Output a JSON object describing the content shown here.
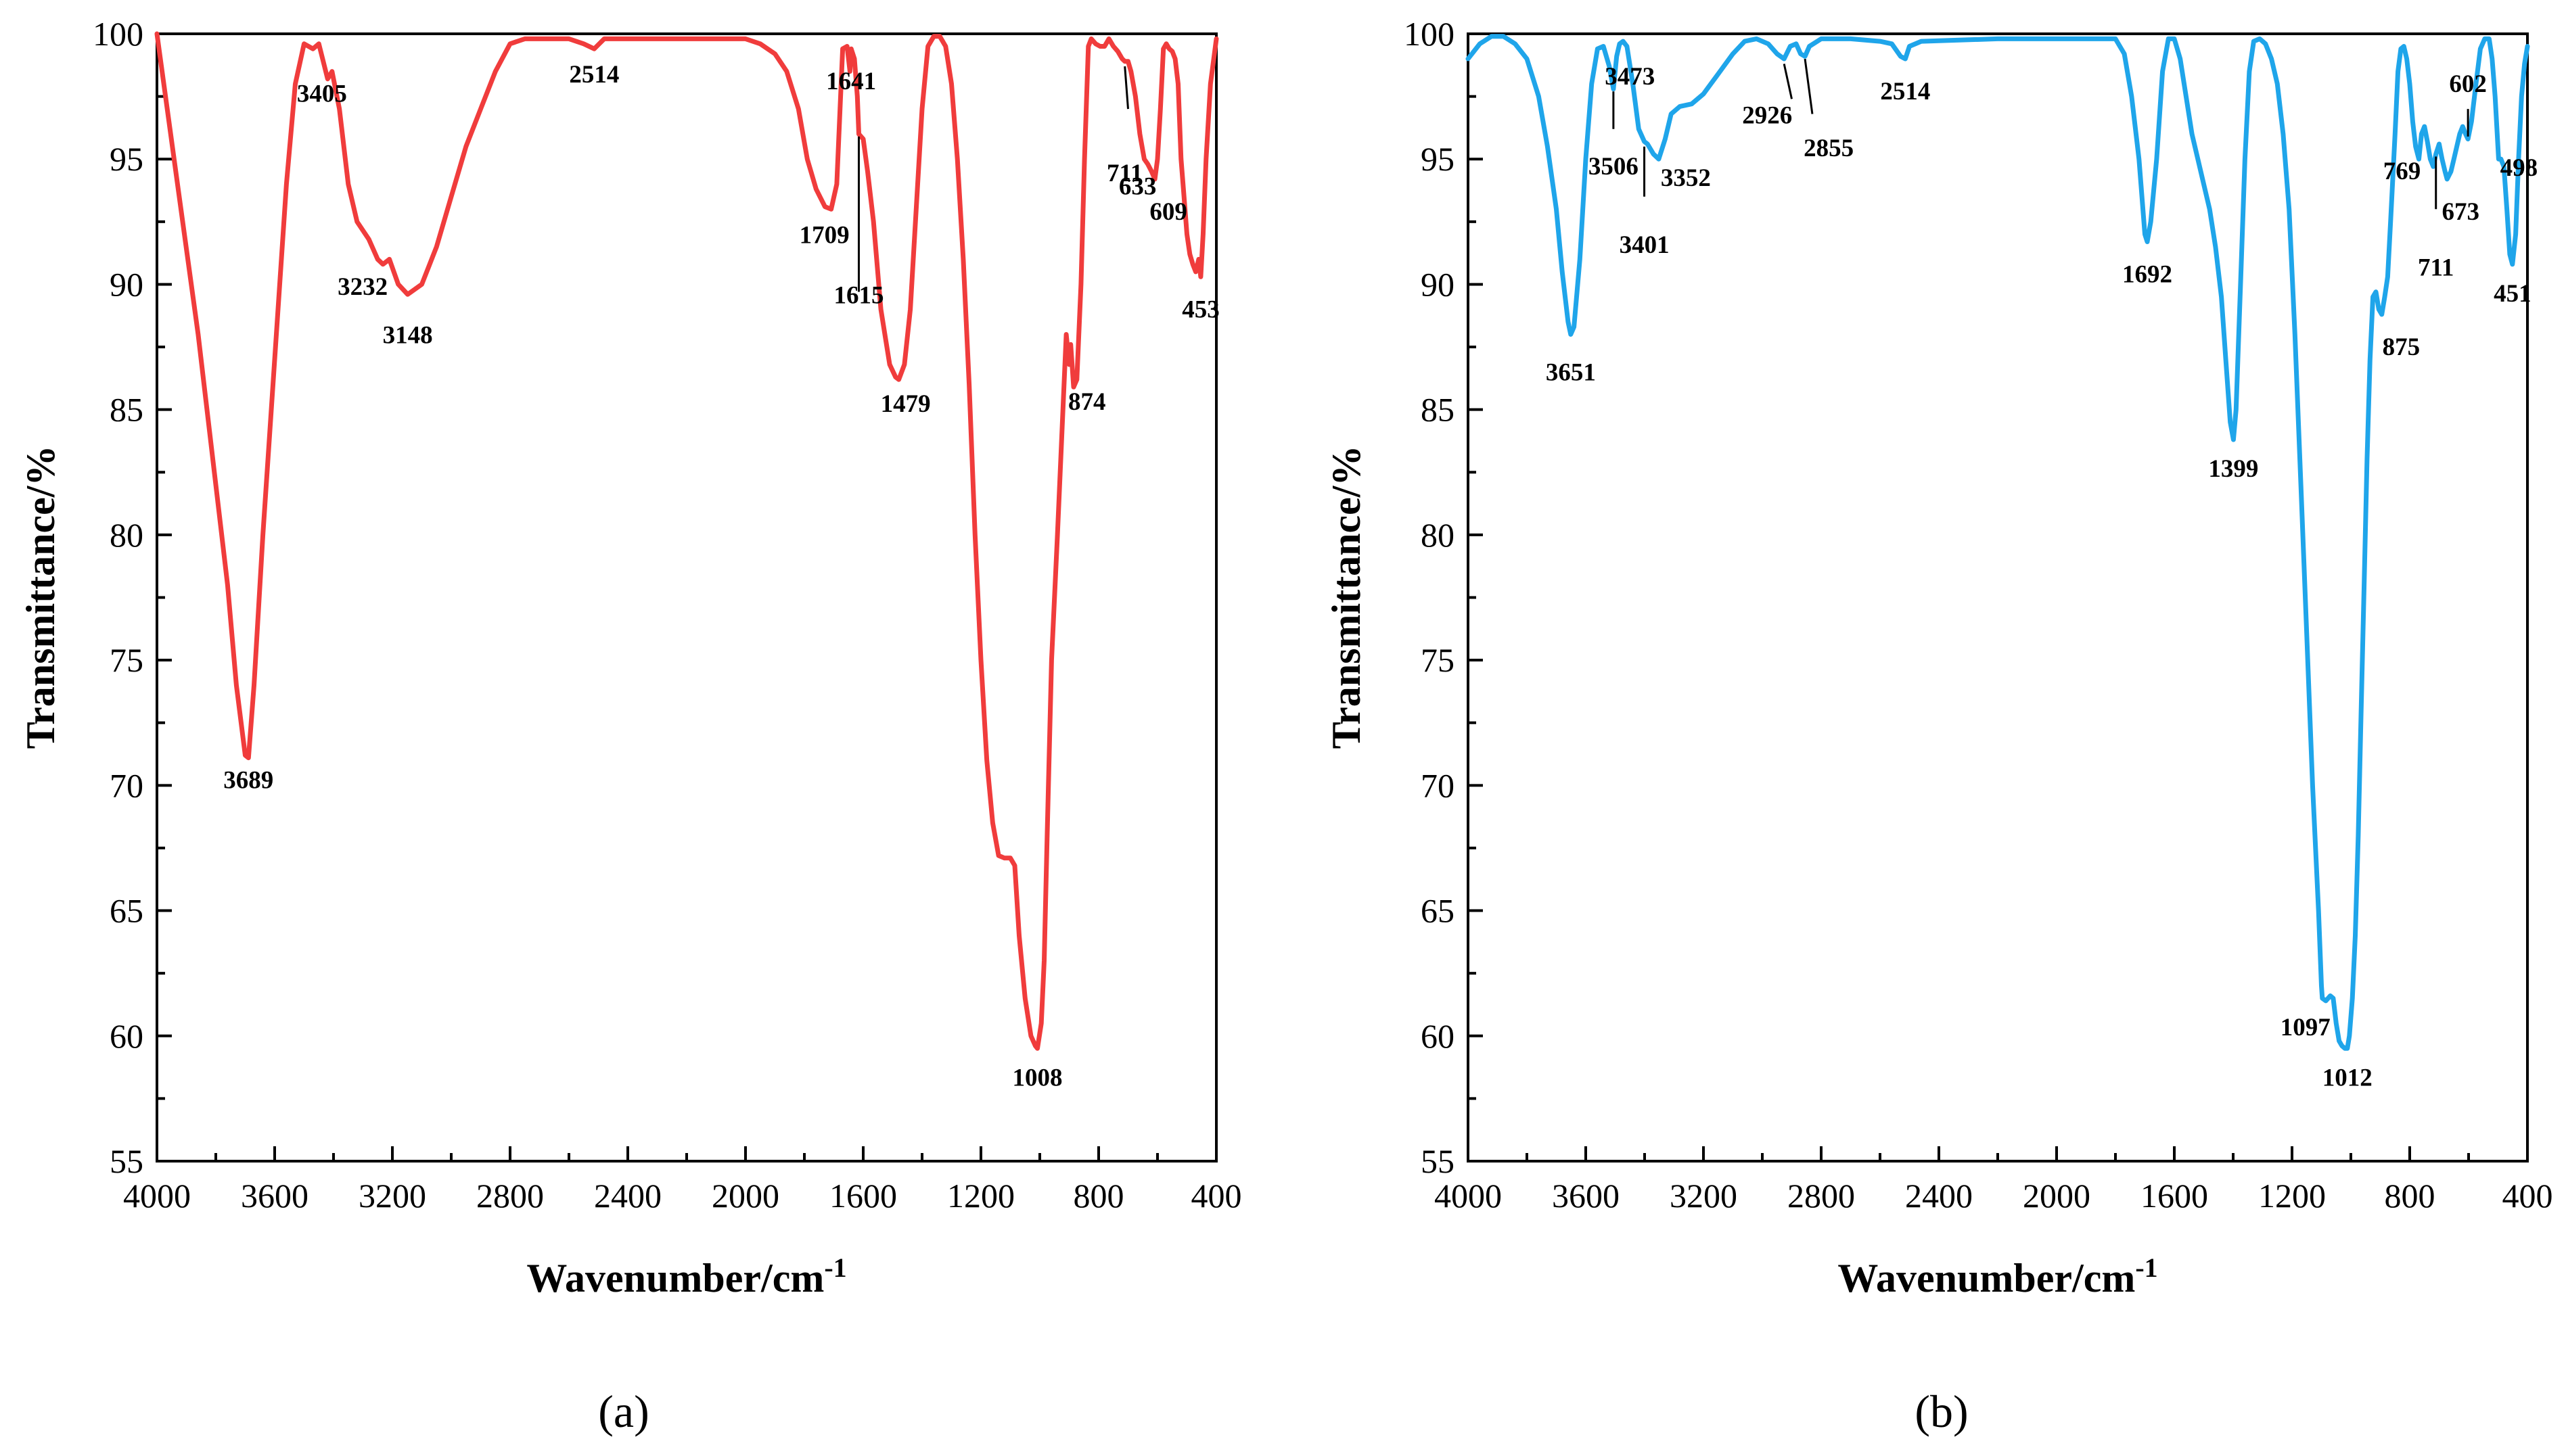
{
  "chart_data": [
    {
      "type": "line",
      "panel_label": "(a)",
      "color": "#f03c3c",
      "xlabel": "Wavenumber/cm",
      "xlabel_sup": "-1",
      "ylabel": "Transmittance/%",
      "xlim": [
        4000,
        400
      ],
      "ylim": [
        55,
        100
      ],
      "xticks": [
        "4000",
        "3600",
        "3200",
        "2800",
        "2400",
        "2000",
        "1600",
        "1200",
        "800",
        "400"
      ],
      "yticks": [
        "55",
        "60",
        "65",
        "70",
        "75",
        "80",
        "85",
        "90",
        "95",
        "100"
      ],
      "curve": [
        [
          4000,
          100
        ],
        [
          3930,
          94
        ],
        [
          3860,
          88
        ],
        [
          3800,
          82
        ],
        [
          3760,
          78
        ],
        [
          3730,
          74
        ],
        [
          3700,
          71.2
        ],
        [
          3689,
          71.1
        ],
        [
          3670,
          74
        ],
        [
          3640,
          80
        ],
        [
          3600,
          87
        ],
        [
          3560,
          94
        ],
        [
          3530,
          98
        ],
        [
          3500,
          99.6
        ],
        [
          3470,
          99.4
        ],
        [
          3450,
          99.6
        ],
        [
          3420,
          98.2
        ],
        [
          3405,
          98.5
        ],
        [
          3380,
          97
        ],
        [
          3350,
          94
        ],
        [
          3320,
          92.5
        ],
        [
          3280,
          91.8
        ],
        [
          3250,
          91
        ],
        [
          3232,
          90.8
        ],
        [
          3210,
          91
        ],
        [
          3180,
          90
        ],
        [
          3148,
          89.6
        ],
        [
          3100,
          90
        ],
        [
          3050,
          91.5
        ],
        [
          3000,
          93.5
        ],
        [
          2950,
          95.5
        ],
        [
          2900,
          97
        ],
        [
          2850,
          98.5
        ],
        [
          2800,
          99.6
        ],
        [
          2750,
          99.8
        ],
        [
          2600,
          99.8
        ],
        [
          2550,
          99.6
        ],
        [
          2514,
          99.4
        ],
        [
          2480,
          99.8
        ],
        [
          2200,
          99.8
        ],
        [
          2000,
          99.8
        ],
        [
          1950,
          99.6
        ],
        [
          1900,
          99.2
        ],
        [
          1860,
          98.5
        ],
        [
          1820,
          97
        ],
        [
          1790,
          95
        ],
        [
          1760,
          93.8
        ],
        [
          1730,
          93.1
        ],
        [
          1709,
          93
        ],
        [
          1690,
          94
        ],
        [
          1670,
          99.4
        ],
        [
          1655,
          99.5
        ],
        [
          1645,
          98.5
        ],
        [
          1641,
          99.4
        ],
        [
          1630,
          99
        ],
        [
          1620,
          97.5
        ],
        [
          1615,
          96
        ],
        [
          1600,
          95.8
        ],
        [
          1585,
          94.5
        ],
        [
          1565,
          92.5
        ],
        [
          1540,
          89
        ],
        [
          1510,
          86.8
        ],
        [
          1490,
          86.3
        ],
        [
          1479,
          86.2
        ],
        [
          1460,
          86.8
        ],
        [
          1440,
          89
        ],
        [
          1420,
          93
        ],
        [
          1400,
          97
        ],
        [
          1380,
          99.5
        ],
        [
          1360,
          99.9
        ],
        [
          1340,
          99.9
        ],
        [
          1320,
          99.5
        ],
        [
          1300,
          98
        ],
        [
          1280,
          95
        ],
        [
          1260,
          91
        ],
        [
          1240,
          86
        ],
        [
          1220,
          80
        ],
        [
          1200,
          75
        ],
        [
          1180,
          71
        ],
        [
          1160,
          68.5
        ],
        [
          1140,
          67.2
        ],
        [
          1120,
          67.1
        ],
        [
          1100,
          67.1
        ],
        [
          1085,
          66.8
        ],
        [
          1070,
          64
        ],
        [
          1050,
          61.5
        ],
        [
          1030,
          60
        ],
        [
          1015,
          59.6
        ],
        [
          1008,
          59.5
        ],
        [
          995,
          60.5
        ],
        [
          985,
          63
        ],
        [
          975,
          68
        ],
        [
          960,
          75
        ],
        [
          940,
          80
        ],
        [
          925,
          84
        ],
        [
          910,
          88
        ],
        [
          900,
          86.8
        ],
        [
          895,
          87.6
        ],
        [
          885,
          85.9
        ],
        [
          874,
          86.2
        ],
        [
          860,
          90
        ],
        [
          848,
          95
        ],
        [
          835,
          99.5
        ],
        [
          825,
          99.8
        ],
        [
          810,
          99.6
        ],
        [
          795,
          99.5
        ],
        [
          780,
          99.5
        ],
        [
          765,
          99.8
        ],
        [
          750,
          99.5
        ],
        [
          735,
          99.3
        ],
        [
          720,
          99
        ],
        [
          711,
          98.9
        ],
        [
          700,
          98.9
        ],
        [
          690,
          98.5
        ],
        [
          675,
          97.5
        ],
        [
          660,
          96
        ],
        [
          645,
          95
        ],
        [
          633,
          94.8
        ],
        [
          620,
          94.5
        ],
        [
          609,
          94.2
        ],
        [
          600,
          95
        ],
        [
          590,
          97
        ],
        [
          580,
          99.4
        ],
        [
          570,
          99.6
        ],
        [
          560,
          99.4
        ],
        [
          550,
          99.3
        ],
        [
          540,
          99
        ],
        [
          530,
          98
        ],
        [
          520,
          95
        ],
        [
          510,
          93.5
        ],
        [
          500,
          92
        ],
        [
          490,
          91.2
        ],
        [
          480,
          90.8
        ],
        [
          470,
          90.5
        ],
        [
          460,
          91
        ],
        [
          453,
          90.3
        ],
        [
          445,
          92
        ],
        [
          435,
          95
        ],
        [
          420,
          98
        ],
        [
          400,
          99.8
        ]
      ],
      "peaks": [
        "3689",
        "3405",
        "3232",
        "3148",
        "2514",
        "1709",
        "1641",
        "1615",
        "1479",
        "1008",
        "874",
        "711",
        "633",
        "609",
        "453"
      ]
    },
    {
      "type": "line",
      "panel_label": "(b)",
      "color": "#1fa5ea",
      "xlabel": "Wavenumber/cm",
      "xlabel_sup": "-1",
      "ylabel": "Transmittance/%",
      "xlim": [
        4000,
        400
      ],
      "ylim": [
        55,
        100
      ],
      "xticks": [
        "4000",
        "3600",
        "3200",
        "2800",
        "2400",
        "2000",
        "1600",
        "1200",
        "800",
        "400"
      ],
      "yticks": [
        "55",
        "60",
        "65",
        "70",
        "75",
        "80",
        "85",
        "90",
        "95",
        "100"
      ],
      "curve": [
        [
          4000,
          99
        ],
        [
          3960,
          99.6
        ],
        [
          3920,
          99.9
        ],
        [
          3880,
          99.9
        ],
        [
          3840,
          99.6
        ],
        [
          3800,
          99
        ],
        [
          3760,
          97.5
        ],
        [
          3730,
          95.5
        ],
        [
          3700,
          93
        ],
        [
          3680,
          90.5
        ],
        [
          3660,
          88.5
        ],
        [
          3651,
          88
        ],
        [
          3640,
          88.3
        ],
        [
          3620,
          91
        ],
        [
          3600,
          95
        ],
        [
          3580,
          98
        ],
        [
          3560,
          99.4
        ],
        [
          3540,
          99.5
        ],
        [
          3520,
          98.7
        ],
        [
          3506,
          97.8
        ],
        [
          3495,
          99.1
        ],
        [
          3485,
          99.6
        ],
        [
          3473,
          99.7
        ],
        [
          3460,
          99.5
        ],
        [
          3440,
          98
        ],
        [
          3420,
          96.2
        ],
        [
          3401,
          95.7
        ],
        [
          3390,
          95.6
        ],
        [
          3370,
          95.2
        ],
        [
          3352,
          95
        ],
        [
          3330,
          95.8
        ],
        [
          3310,
          96.8
        ],
        [
          3280,
          97.1
        ],
        [
          3240,
          97.2
        ],
        [
          3200,
          97.6
        ],
        [
          3150,
          98.4
        ],
        [
          3100,
          99.2
        ],
        [
          3060,
          99.7
        ],
        [
          3020,
          99.8
        ],
        [
          2980,
          99.6
        ],
        [
          2950,
          99.2
        ],
        [
          2926,
          99
        ],
        [
          2905,
          99.5
        ],
        [
          2885,
          99.6
        ],
        [
          2870,
          99.2
        ],
        [
          2855,
          99.1
        ],
        [
          2840,
          99.5
        ],
        [
          2800,
          99.8
        ],
        [
          2700,
          99.8
        ],
        [
          2600,
          99.7
        ],
        [
          2560,
          99.6
        ],
        [
          2530,
          99.1
        ],
        [
          2514,
          99
        ],
        [
          2500,
          99.5
        ],
        [
          2460,
          99.7
        ],
        [
          2200,
          99.8
        ],
        [
          1800,
          99.8
        ],
        [
          1770,
          99.2
        ],
        [
          1745,
          97.5
        ],
        [
          1720,
          95
        ],
        [
          1700,
          92
        ],
        [
          1692,
          91.7
        ],
        [
          1680,
          92.5
        ],
        [
          1660,
          95
        ],
        [
          1640,
          98.5
        ],
        [
          1620,
          99.8
        ],
        [
          1600,
          99.8
        ],
        [
          1580,
          99
        ],
        [
          1560,
          97.5
        ],
        [
          1540,
          96
        ],
        [
          1520,
          95
        ],
        [
          1500,
          94
        ],
        [
          1480,
          93
        ],
        [
          1460,
          91.5
        ],
        [
          1440,
          89.5
        ],
        [
          1425,
          87
        ],
        [
          1410,
          84.5
        ],
        [
          1399,
          83.8
        ],
        [
          1390,
          85
        ],
        [
          1375,
          90
        ],
        [
          1360,
          95
        ],
        [
          1345,
          98.5
        ],
        [
          1330,
          99.7
        ],
        [
          1310,
          99.8
        ],
        [
          1290,
          99.6
        ],
        [
          1270,
          99
        ],
        [
          1250,
          98
        ],
        [
          1230,
          96
        ],
        [
          1210,
          93
        ],
        [
          1190,
          88
        ],
        [
          1170,
          82
        ],
        [
          1150,
          76
        ],
        [
          1130,
          70
        ],
        [
          1110,
          65
        ],
        [
          1100,
          62
        ],
        [
          1097,
          61.5
        ],
        [
          1085,
          61.4
        ],
        [
          1070,
          61.6
        ],
        [
          1060,
          61.5
        ],
        [
          1050,
          60.5
        ],
        [
          1040,
          59.8
        ],
        [
          1030,
          59.6
        ],
        [
          1020,
          59.5
        ],
        [
          1012,
          59.5
        ],
        [
          1005,
          60
        ],
        [
          995,
          61.5
        ],
        [
          985,
          64
        ],
        [
          975,
          68
        ],
        [
          965,
          73
        ],
        [
          955,
          78
        ],
        [
          945,
          83
        ],
        [
          935,
          87
        ],
        [
          925,
          89.5
        ],
        [
          915,
          89.7
        ],
        [
          905,
          89
        ],
        [
          895,
          88.8
        ],
        [
          885,
          89.5
        ],
        [
          875,
          90.3
        ],
        [
          865,
          92.5
        ],
        [
          850,
          96
        ],
        [
          840,
          98.5
        ],
        [
          830,
          99.4
        ],
        [
          820,
          99.5
        ],
        [
          810,
          99
        ],
        [
          800,
          98
        ],
        [
          790,
          96.5
        ],
        [
          780,
          95.5
        ],
        [
          769,
          95
        ],
        [
          760,
          96
        ],
        [
          750,
          96.3
        ],
        [
          740,
          95.7
        ],
        [
          730,
          95
        ],
        [
          720,
          94.7
        ],
        [
          711,
          95.2
        ],
        [
          700,
          95.6
        ],
        [
          690,
          95
        ],
        [
          680,
          94.5
        ],
        [
          673,
          94.2
        ],
        [
          660,
          94.5
        ],
        [
          650,
          95
        ],
        [
          640,
          95.5
        ],
        [
          630,
          96
        ],
        [
          620,
          96.3
        ],
        [
          610,
          96
        ],
        [
          602,
          95.8
        ],
        [
          590,
          96.5
        ],
        [
          575,
          98
        ],
        [
          560,
          99.4
        ],
        [
          545,
          99.8
        ],
        [
          530,
          99.8
        ],
        [
          520,
          99
        ],
        [
          510,
          97.5
        ],
        [
          498,
          95
        ],
        [
          490,
          95
        ],
        [
          480,
          94.7
        ],
        [
          470,
          93
        ],
        [
          460,
          91.2
        ],
        [
          451,
          90.8
        ],
        [
          440,
          92
        ],
        [
          430,
          95
        ],
        [
          420,
          97.5
        ],
        [
          410,
          98.8
        ],
        [
          400,
          99.5
        ]
      ],
      "peaks": [
        "3651",
        "3506",
        "3473",
        "3401",
        "3352",
        "2926",
        "2855",
        "2514",
        "1692",
        "1399",
        "1097",
        "1012",
        "875",
        "769",
        "711",
        "673",
        "602",
        "498",
        "451"
      ]
    }
  ]
}
